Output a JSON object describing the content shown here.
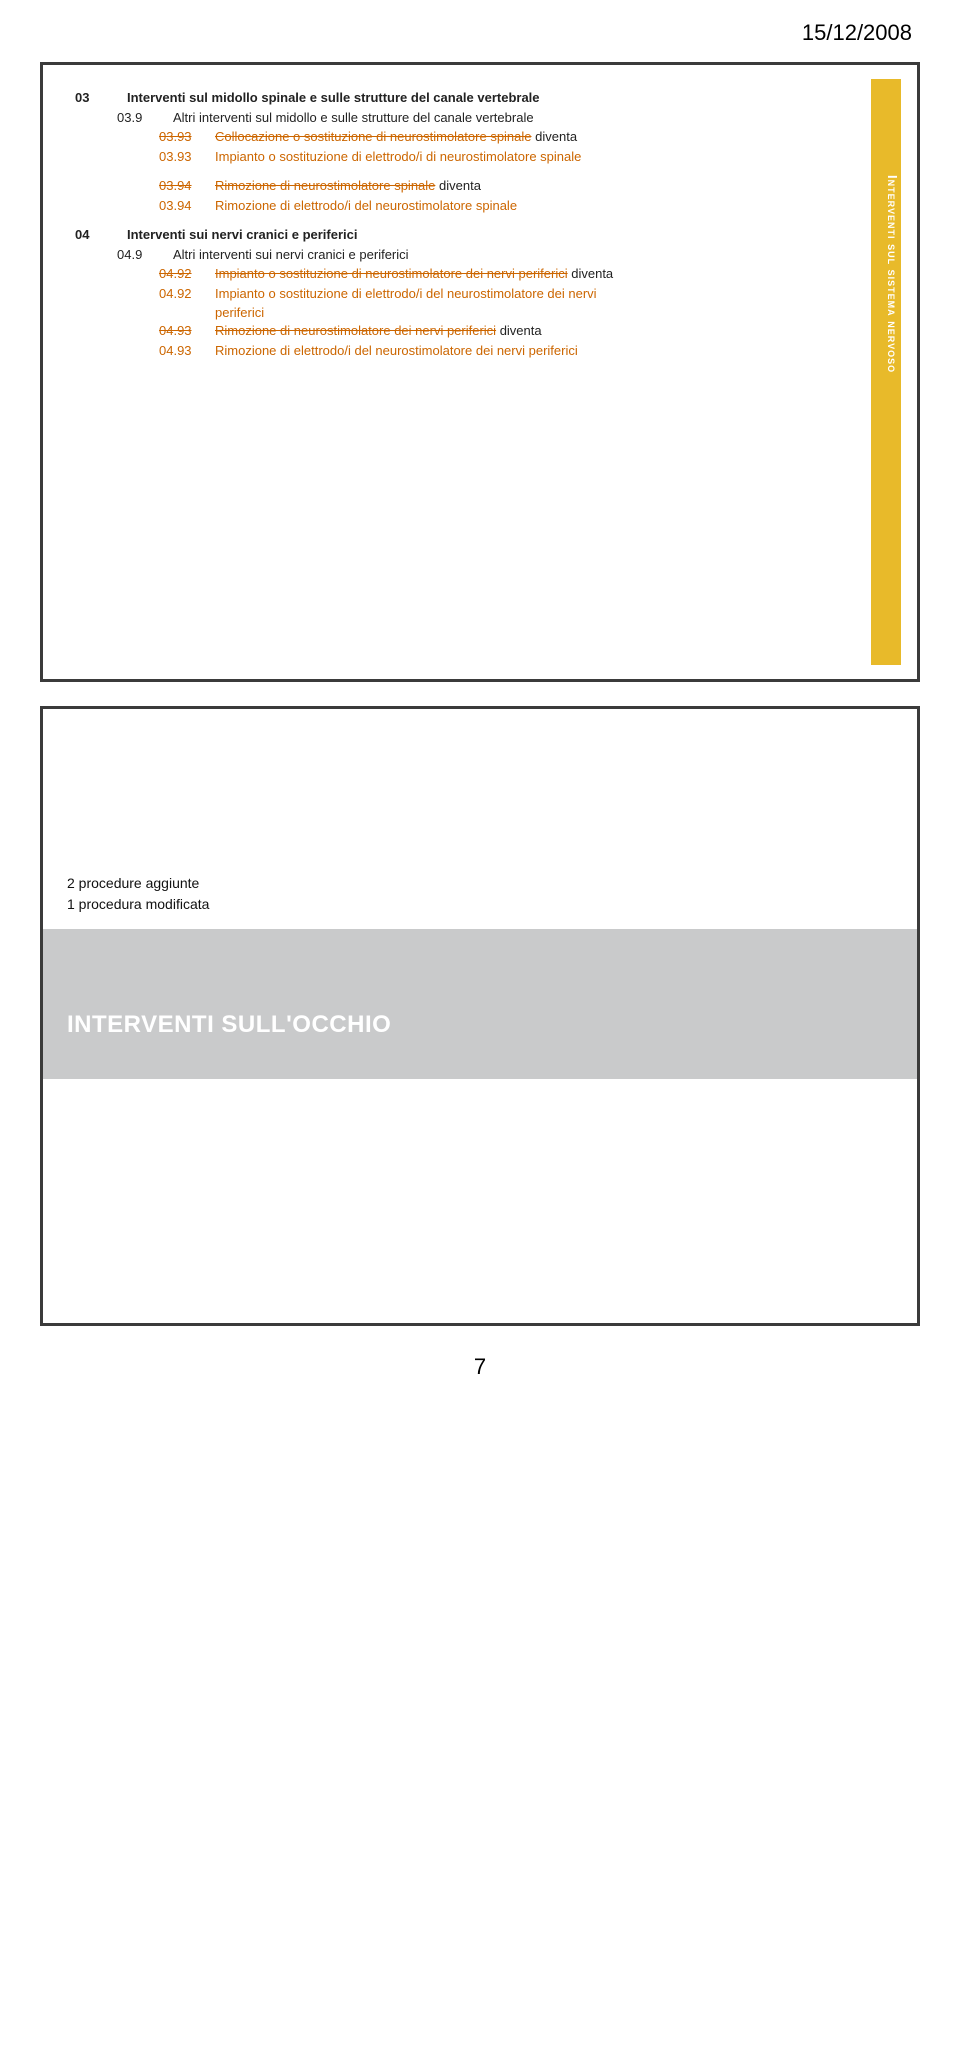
{
  "header": {
    "date": "15/12/2008"
  },
  "slide1": {
    "sidebar_label": "Interventi sul sistema nervoso",
    "rows": [
      {
        "level": 0,
        "code": "03",
        "code_strike": false,
        "bold": true,
        "parts": [
          {
            "t": "Interventi sul midollo spinale e sulle strutture del canale vertebrale",
            "style": "plain"
          }
        ]
      },
      {
        "level": 1,
        "code": "03.9",
        "code_strike": false,
        "parts": [
          {
            "t": "Altri interventi sul midollo e sulle strutture del canale vertebrale",
            "style": "plain"
          }
        ]
      },
      {
        "level": 2,
        "code": "03.93",
        "code_strike": true,
        "parts": [
          {
            "t": "Collocazione o sostituzione di neurostimolatore spinale",
            "style": "orange-strike"
          },
          {
            "t": " diventa",
            "style": "suffix"
          }
        ]
      },
      {
        "level": 2,
        "code": "03.93",
        "code_strike": false,
        "parts": [
          {
            "t": "Impianto o sostituzione di elettrodo/i di neurostimolatore spinale",
            "style": "orange"
          }
        ]
      },
      {
        "level": -1
      },
      {
        "level": 2,
        "code": "03.94",
        "code_strike": true,
        "parts": [
          {
            "t": "Rimozione di neurostimolatore spinale",
            "style": "orange-strike"
          },
          {
            "t": " diventa",
            "style": "suffix"
          }
        ]
      },
      {
        "level": 2,
        "code": "03.94",
        "code_strike": false,
        "parts": [
          {
            "t": "Rimozione di elettrodo/i del neurostimolatore spinale",
            "style": "orange"
          }
        ]
      },
      {
        "level": -1
      },
      {
        "level": 0,
        "code": "04",
        "code_strike": false,
        "bold": true,
        "parts": [
          {
            "t": "Interventi sui nervi cranici e periferici",
            "style": "plain"
          }
        ]
      },
      {
        "level": 1,
        "code": "04.9",
        "code_strike": false,
        "parts": [
          {
            "t": "Altri interventi sui nervi cranici e periferici",
            "style": "plain"
          }
        ]
      },
      {
        "level": 2,
        "code": "04.92",
        "code_strike": true,
        "parts": [
          {
            "t": "Impianto o sostituzione di neurostimolatore dei nervi periferici",
            "style": "orange-strike"
          },
          {
            "t": " diventa",
            "style": "suffix"
          }
        ]
      },
      {
        "level": 2,
        "code": "04.92",
        "code_strike": false,
        "parts": [
          {
            "t": "Impianto o sostituzione di elettrodo/i del neurostimolatore dei nervi",
            "style": "orange"
          }
        ]
      },
      {
        "level": 3,
        "parts": [
          {
            "t": "periferici",
            "style": "orange"
          }
        ]
      },
      {
        "level": 2,
        "code": "04.93",
        "code_strike": true,
        "parts": [
          {
            "t": "Rimozione di neurostimolatore dei nervi periferici",
            "style": "orange-strike"
          },
          {
            "t": " diventa",
            "style": "suffix"
          }
        ]
      },
      {
        "level": 2,
        "code": "04.93",
        "code_strike": false,
        "parts": [
          {
            "t": "Rimozione di elettrodo/i del neurostimolatore dei nervi periferici",
            "style": "orange"
          }
        ]
      }
    ]
  },
  "slide2": {
    "notes": [
      "2 procedure aggiunte",
      "1 procedura modificata"
    ],
    "title": "INTERVENTI SULL'OCCHIO"
  },
  "footer": {
    "page": "7"
  },
  "colors": {
    "frame": "#3b3b3b",
    "sidebar": "#e8ba2a",
    "grey_band": "#c9cacb",
    "orange": "#cc6600"
  }
}
